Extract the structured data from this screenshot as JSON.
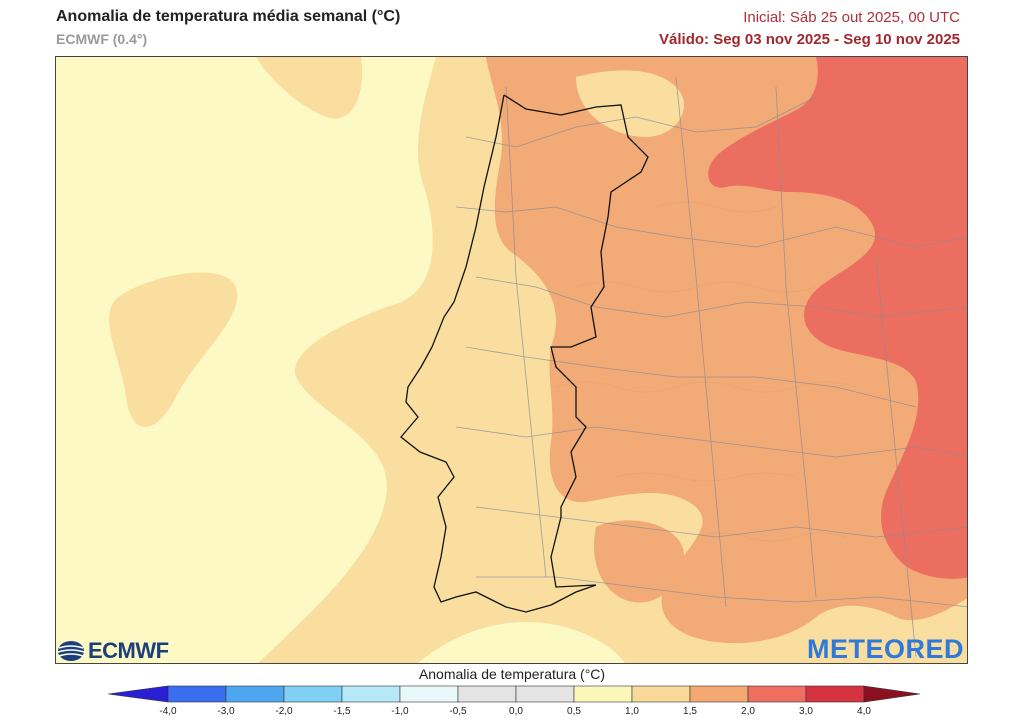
{
  "header": {
    "title": "Anomalia de temperatura média semanal (°C)",
    "model": "ECMWF (0.4°)",
    "initial": "Inicial: Sáb 25 out 2025, 00 UTC",
    "valid": "Válido: Seg 03 nov 2025 - Seg 10 nov 2025"
  },
  "logos": {
    "left": "ECMWF",
    "right": "METEORED"
  },
  "colorbar": {
    "title": "Anomalia de temperatura (°C)",
    "ticks": [
      "-4,0",
      "-3,0",
      "-2,0",
      "-1,5",
      "-1,0",
      "-0,5",
      "0,0",
      "0,5",
      "1,0",
      "1,5",
      "2,0",
      "3,0",
      "4,0"
    ],
    "colors": [
      "#2a1fd6",
      "#3a6df0",
      "#4fa6f0",
      "#7fd0f3",
      "#b5e9f7",
      "#e9f8fb",
      "#e4e4e4",
      "#e4e4e4",
      "#fbf7b9",
      "#f8d99a",
      "#f4a973",
      "#ee6f5f",
      "#d63340",
      "#8c0f1f"
    ]
  },
  "map_colors": {
    "anom_0_5_to_1_0": "#fdf9c4",
    "anom_1_0_to_1_5": "#f9dea0",
    "anom_1_5_to_2_0": "#f2aa76",
    "anom_2_0_to_3_0": "#ec6e60"
  }
}
